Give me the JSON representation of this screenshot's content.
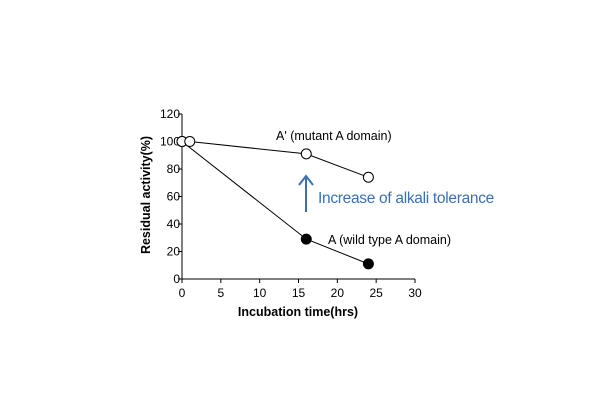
{
  "chart_data": {
    "type": "line",
    "title": "",
    "xlabel": "Incubation time(hrs)",
    "ylabel": "Residual activity(%)",
    "xlim": [
      0,
      30
    ],
    "ylim": [
      0,
      120
    ],
    "xticks": [
      0,
      5,
      10,
      15,
      20,
      25,
      30
    ],
    "yticks": [
      0,
      20,
      40,
      60,
      80,
      100,
      120
    ],
    "grid": false,
    "legend": "none",
    "series": [
      {
        "name": "A' (mutant A domain)",
        "marker": "open-circle",
        "x": [
          0,
          1,
          16,
          24
        ],
        "y": [
          100,
          100,
          91,
          74
        ]
      },
      {
        "name": "A (wild type A domain)",
        "marker": "filled-circle",
        "x": [
          0,
          16,
          24
        ],
        "y": [
          100,
          29,
          11
        ]
      }
    ],
    "annotations": [
      {
        "text": "Increase of alkali tolerance",
        "arrow": "up",
        "color": "#3a6fb7"
      }
    ]
  }
}
